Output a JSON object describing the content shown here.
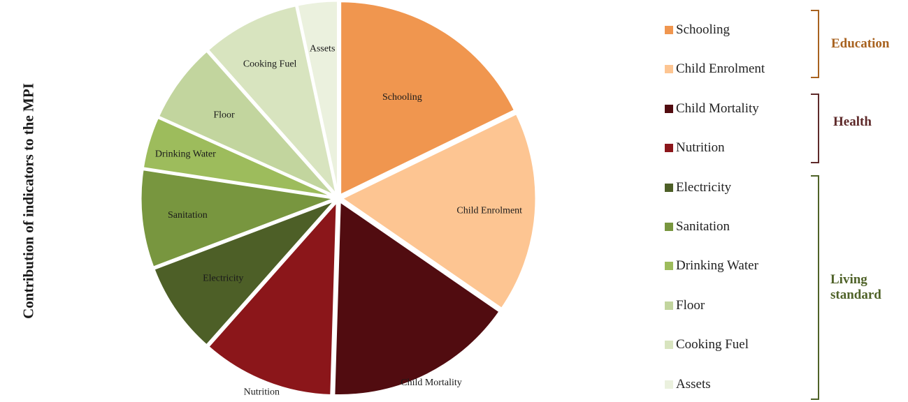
{
  "chart_data": {
    "type": "pie",
    "ylabel": "Contribution of indicators to the MPI",
    "slices": [
      {
        "label": "Schooling",
        "value": 18.5,
        "color": "#f0964f"
      },
      {
        "label": "Child Enrolment",
        "value": 17.5,
        "color": "#fdc592"
      },
      {
        "label": "Child Mortality",
        "value": 16.5,
        "color": "#510c10"
      },
      {
        "label": "Nutrition",
        "value": 11.5,
        "color": "#8b161a"
      },
      {
        "label": "Electricity",
        "value": 8.0,
        "color": "#4d5f27"
      },
      {
        "label": "Sanitation",
        "value": 8.5,
        "color": "#78963f"
      },
      {
        "label": "Drinking Water",
        "value": 4.5,
        "color": "#9dbc5c"
      },
      {
        "label": "Floor",
        "value": 7.0,
        "color": "#c2d59e"
      },
      {
        "label": "Cooking Fuel",
        "value": 8.5,
        "color": "#d8e4bf"
      },
      {
        "label": "Assets",
        "value": 3.5,
        "color": "#ebf1de"
      }
    ],
    "legend": {
      "items": [
        "Schooling",
        "Child Enrolment",
        "Child Mortality",
        "Nutrition",
        "Electricity",
        "Sanitation",
        "Drinking Water",
        "Floor",
        "Cooking Fuel",
        "Assets"
      ],
      "groups": [
        {
          "label": "Education",
          "color": "#a8621f"
        },
        {
          "label": "Health",
          "color": "#5e2a2a"
        },
        {
          "label": "Living standard",
          "color": "#4f6228"
        }
      ]
    }
  }
}
